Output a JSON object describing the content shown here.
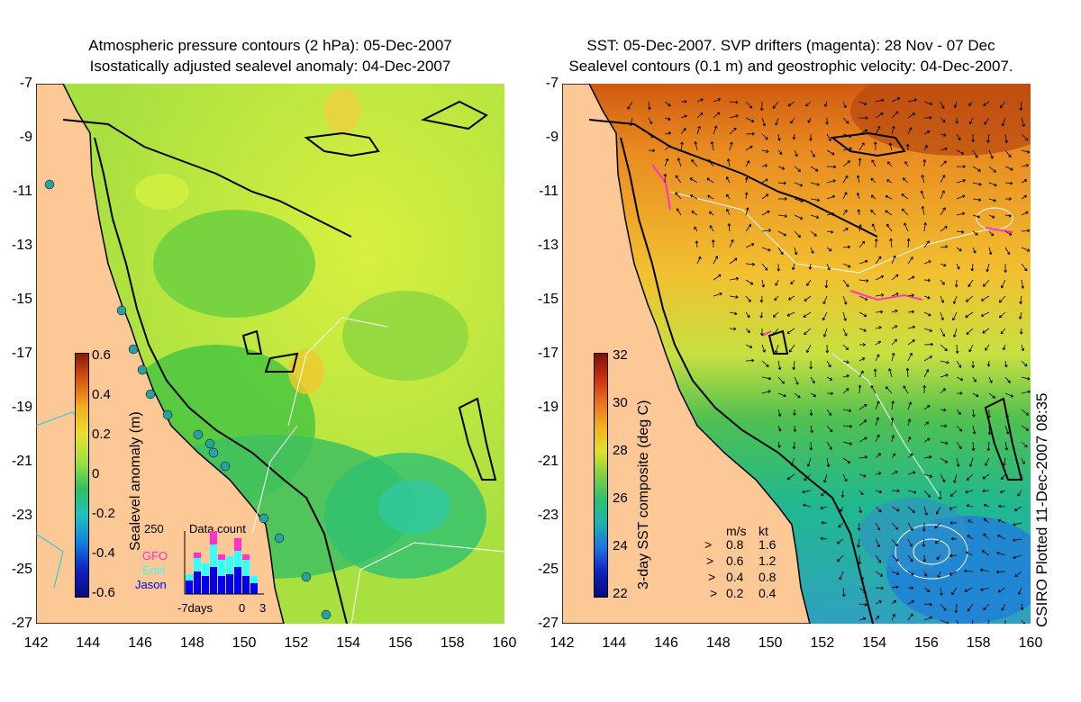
{
  "left_panel": {
    "title_line1": "Atmospheric pressure contours (2 hPa): 05-Dec-2007",
    "title_line2": "Isostatically adjusted sealevel anomaly: 04-Dec-2007",
    "colorbar_label": "Sealevel anomaly (m)",
    "colorbar_ticks": [
      "0.6",
      "0.4",
      "0.2",
      "0",
      "-0.2",
      "-0.4",
      "-0.6"
    ],
    "inset": {
      "title": "Data count",
      "ymax": "250",
      "legend": [
        "GFO",
        "Envi",
        "Jason"
      ],
      "xticks": [
        "-7days",
        "0",
        "3"
      ],
      "colors": {
        "GFO": "#ff33cc",
        "Envi": "#33ffff",
        "Jason": "#0000ee"
      }
    }
  },
  "right_panel": {
    "title_line1": "SST: 05-Dec-2007. SVP drifters (magenta): 28 Nov - 07 Dec",
    "title_line2": "Sealevel contours (0.1 m) and geostrophic velocity: 04-Dec-2007.",
    "colorbar_label": "3-day SST composite (deg C)",
    "colorbar_ticks": [
      "32",
      "30",
      "28",
      "26",
      "24",
      "22"
    ],
    "velocity_legend": {
      "header_ms": "m/s",
      "header_kt": "kt",
      "rows": [
        {
          "ms": "0.8",
          "kt": "1.6"
        },
        {
          "ms": "0.6",
          "kt": "1.2"
        },
        {
          "ms": "0.4",
          "kt": "0.8"
        },
        {
          "ms": "0.2",
          "kt": "0.4"
        }
      ]
    }
  },
  "axes": {
    "y_ticks": [
      "-7",
      "-9",
      "-11",
      "-13",
      "-15",
      "-17",
      "-19",
      "-21",
      "-23",
      "-25",
      "-27"
    ],
    "x_ticks": [
      "142",
      "144",
      "146",
      "148",
      "150",
      "152",
      "154",
      "156",
      "158",
      "160"
    ]
  },
  "colors": {
    "land": "#fcc896",
    "coast": "#000000",
    "drifter": "#ff33cc",
    "contour": "#ffffff",
    "altimeter_track": "#33cccc"
  },
  "credit": "CSIRO Plotted 11-Dec-2007 08:35"
}
